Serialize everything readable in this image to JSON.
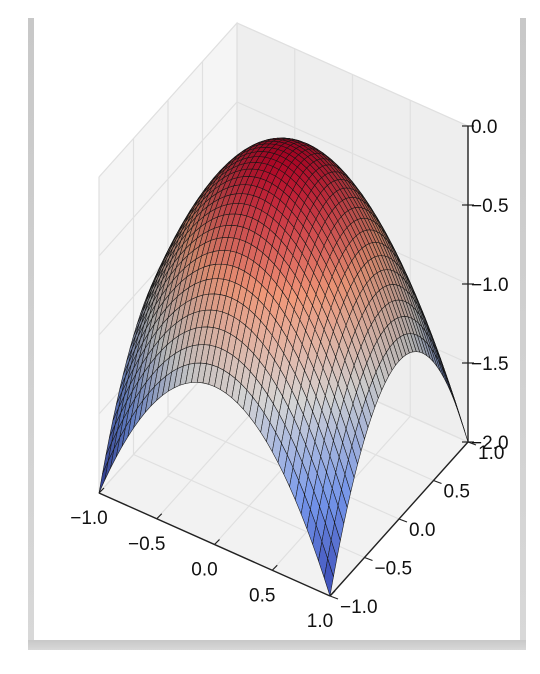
{
  "chart_data": {
    "type": "surface3d",
    "function": "z = -(x^2 + y^2)",
    "colormap": "coolwarm",
    "x_range": [
      -1.0,
      1.0
    ],
    "y_range": [
      -1.0,
      1.0
    ],
    "z_range": [
      -2.0,
      0.0
    ],
    "grid_resolution": 40,
    "x_ticks": [
      "−1.0",
      "−0.5",
      "0.0",
      "0.5",
      "1.0"
    ],
    "y_ticks": [
      "−1.0",
      "−0.5",
      "0.0",
      "0.5",
      "1.0"
    ],
    "z_ticks": [
      "0.0",
      "−0.5",
      "−1.0",
      "−1.5",
      "−2.0"
    ],
    "x_tick_values": [
      -1.0,
      -0.5,
      0.0,
      0.5,
      1.0
    ],
    "y_tick_values": [
      -1.0,
      -0.5,
      0.0,
      0.5,
      1.0
    ],
    "z_tick_values": [
      0.0,
      -0.5,
      -1.0,
      -1.5,
      -2.0
    ],
    "grid": true,
    "title": "",
    "xlabel": "",
    "ylabel": "",
    "zlabel": ""
  }
}
